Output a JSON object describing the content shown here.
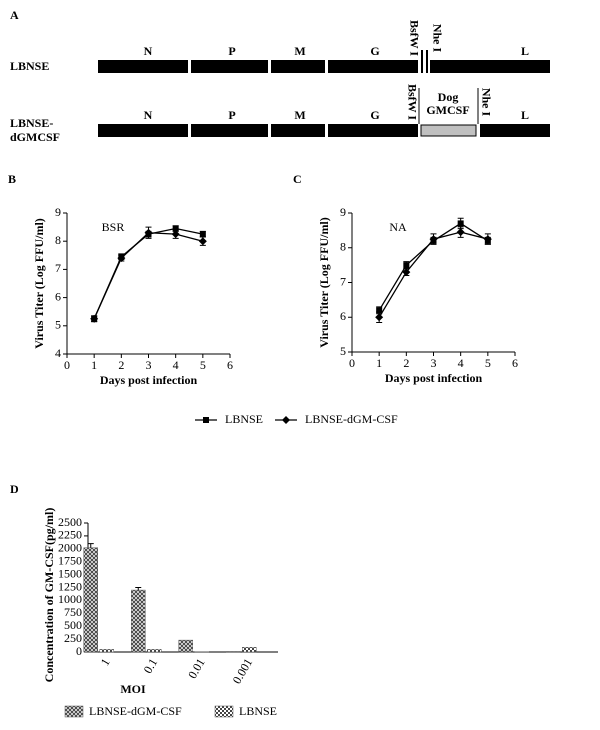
{
  "diagram": {
    "label": "A",
    "rows": [
      {
        "name": [
          "LBNSE"
        ],
        "genes": [
          "N",
          "P",
          "M",
          "G",
          "L"
        ],
        "sites": [
          "BsfW I",
          "Nhe I"
        ]
      },
      {
        "name": [
          "LBNSE-",
          "dGMCSF"
        ],
        "genes": [
          "N",
          "P",
          "M",
          "G",
          "L"
        ],
        "sites": [
          "BsfW I",
          "Nhe I"
        ],
        "insert": [
          "Dog",
          "GMCSF"
        ]
      }
    ]
  },
  "chart_data": [
    {
      "type": "line",
      "panel": "B",
      "title": "BSR",
      "x_label": "Days post infection",
      "y_label": "Virus Titer (Log FFU/ml)",
      "x": [
        1,
        2,
        3,
        4,
        5
      ],
      "xlim": [
        0,
        6
      ],
      "xticks": [
        0,
        1,
        2,
        3,
        4,
        5,
        6
      ],
      "ylim": [
        4,
        9
      ],
      "yticks": [
        4,
        5,
        6,
        7,
        8,
        9
      ],
      "series": [
        {
          "name": "LBNSE",
          "color": "#000000",
          "marker": "square",
          "values": [
            5.25,
            7.45,
            8.25,
            8.45,
            8.25
          ],
          "errors": [
            0.1,
            0.1,
            0.1,
            0.1,
            0.1
          ]
        },
        {
          "name": "LBNSE-dGM-CSF",
          "color": "#000000",
          "marker": "diamond",
          "values": [
            5.25,
            7.4,
            8.3,
            8.25,
            8.0
          ],
          "errors": [
            0.1,
            0.1,
            0.2,
            0.15,
            0.15
          ]
        }
      ]
    },
    {
      "type": "line",
      "panel": "C",
      "title": "NA",
      "x_label": "Days post infection",
      "y_label": "Virus Titer (Log FFU/ml)",
      "x": [
        1,
        2,
        3,
        4,
        5
      ],
      "xlim": [
        0,
        6
      ],
      "xticks": [
        0,
        1,
        2,
        3,
        4,
        5,
        6
      ],
      "ylim": [
        5,
        9
      ],
      "yticks": [
        5,
        6,
        7,
        8,
        9
      ],
      "series": [
        {
          "color": "#000000",
          "marker": "square",
          "values": [
            6.2,
            7.5,
            8.2,
            8.7,
            8.2
          ],
          "errors": [
            0.1,
            0.1,
            0.1,
            0.15,
            0.1
          ]
        },
        {
          "color": "#000000",
          "marker": "diamond",
          "values": [
            6.0,
            7.3,
            8.25,
            8.45,
            8.25
          ],
          "errors": [
            0.15,
            0.1,
            0.15,
            0.15,
            0.15
          ]
        }
      ]
    },
    {
      "type": "bar",
      "panel": "D",
      "x_label": "MOI",
      "y_label": "Concentration of GM-CSF(pg/ml)",
      "categories": [
        "1",
        "0.1",
        "0.01",
        "0.001"
      ],
      "ylim": [
        0,
        2500
      ],
      "yticks": [
        0,
        250,
        500,
        750,
        1000,
        1250,
        1500,
        1750,
        2000,
        2250,
        2500
      ],
      "series": [
        {
          "name": "LBNSE-dGM-CSF",
          "color": "#555555",
          "pattern": "crosshatch",
          "values": [
            2020,
            1200,
            230,
            10
          ],
          "errors": [
            80,
            50,
            0,
            0
          ]
        },
        {
          "name": "LBNSE",
          "color": "#555555",
          "pattern": "checker",
          "values": [
            50,
            50,
            5,
            90
          ],
          "errors": [
            0,
            0,
            0,
            0
          ]
        }
      ]
    }
  ]
}
